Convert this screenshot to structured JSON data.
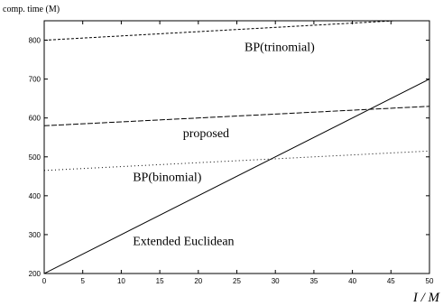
{
  "chart_data": {
    "type": "line",
    "ylabel": "comp. time (M)",
    "xlabel": "I / M",
    "xlim": [
      0,
      50
    ],
    "ylim": [
      200,
      850
    ],
    "x_ticks": [
      0,
      5,
      10,
      15,
      20,
      25,
      30,
      35,
      40,
      45,
      50
    ],
    "y_ticks": [
      200,
      300,
      400,
      500,
      600,
      700,
      800
    ],
    "grid": false,
    "legend": "none",
    "series": [
      {
        "name": "BP(trinomial)",
        "style": "dashed",
        "x": [
          0,
          50
        ],
        "y": [
          800,
          855
        ]
      },
      {
        "name": "proposed",
        "style": "long-dashed",
        "x": [
          0,
          50
        ],
        "y": [
          580,
          630
        ]
      },
      {
        "name": "BP(binomial)",
        "style": "dotted",
        "x": [
          0,
          50
        ],
        "y": [
          465,
          515
        ]
      },
      {
        "name": "Extended Euclidean",
        "style": "solid",
        "x": [
          0,
          50
        ],
        "y": [
          200,
          700
        ]
      }
    ],
    "annotations": [
      {
        "text": "BP(trinomial)",
        "x": 26,
        "y": 772
      },
      {
        "text": "proposed",
        "x": 18,
        "y": 550
      },
      {
        "text": "BP(binomial)",
        "x": 11.5,
        "y": 438
      },
      {
        "text": "Extended Euclidean",
        "x": 11.5,
        "y": 273
      }
    ]
  }
}
